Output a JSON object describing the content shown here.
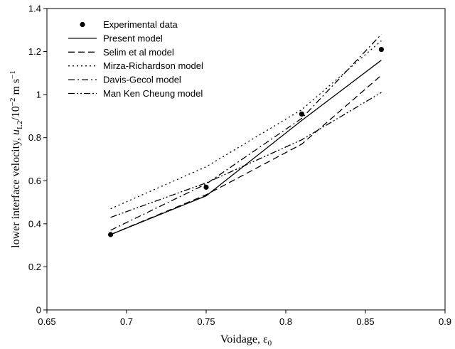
{
  "chart_data": {
    "type": "line",
    "xlabel": "Voidage, ε",
    "xlabel_sub": "0",
    "ylabel_parts": {
      "a": "lower interface velocity, ",
      "b": "u",
      "c": "L2",
      "d": "/10",
      "e": "−2",
      "f": " m s",
      "g": "−1"
    },
    "xlim": [
      0.65,
      0.9
    ],
    "ylim": [
      0,
      1.4
    ],
    "x_ticks": [
      "0.65",
      "0.7",
      "0.75",
      "0.8",
      "0.85",
      "0.9"
    ],
    "y_ticks": [
      "0",
      "0.2",
      "0.4",
      "0.6",
      "0.8",
      "1",
      "1.2",
      "1.4"
    ],
    "legend_position": "top-left",
    "experimental": {
      "name": "Experimental data",
      "x": [
        0.69,
        0.75,
        0.81,
        0.86
      ],
      "y": [
        0.35,
        0.57,
        0.91,
        1.21
      ]
    },
    "series": [
      {
        "name": "Present model",
        "dash": "solid",
        "x": [
          0.69,
          0.75,
          0.81,
          0.86
        ],
        "y": [
          0.35,
          0.53,
          0.88,
          1.16
        ]
      },
      {
        "name": "Selim et al model",
        "dash": "dash",
        "x": [
          0.69,
          0.75,
          0.81,
          0.86
        ],
        "y": [
          0.35,
          0.535,
          0.77,
          1.09
        ]
      },
      {
        "name": "Mirza-Richardson model",
        "dash": "dot",
        "x": [
          0.69,
          0.75,
          0.81,
          0.86
        ],
        "y": [
          0.47,
          0.665,
          0.93,
          1.25
        ]
      },
      {
        "name": "Davis-Gecol model",
        "dash": "dashdot",
        "x": [
          0.69,
          0.75,
          0.81,
          0.86
        ],
        "y": [
          0.37,
          0.585,
          0.89,
          1.28
        ]
      },
      {
        "name": "Man Ken Cheung model",
        "dash": "dashdotdot",
        "x": [
          0.69,
          0.75,
          0.81,
          0.86
        ],
        "y": [
          0.43,
          0.59,
          0.79,
          1.01
        ]
      }
    ]
  }
}
